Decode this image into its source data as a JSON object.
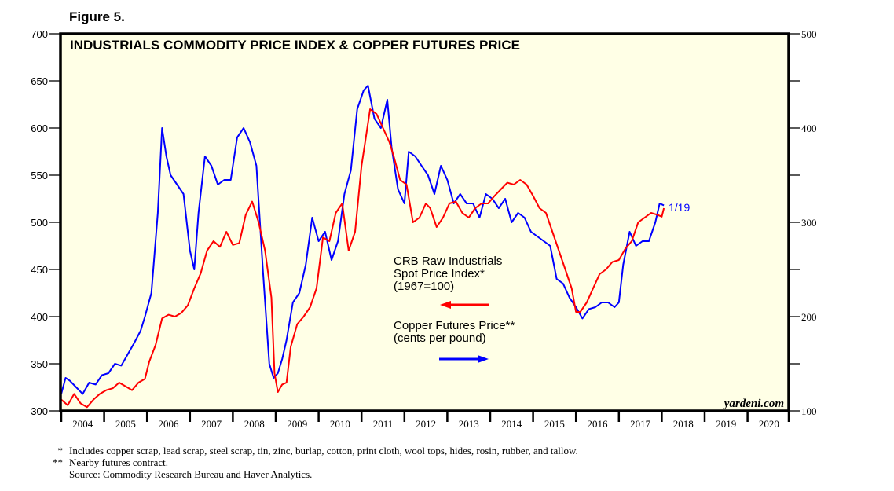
{
  "figure_label": "Figure 5.",
  "footnotes": [
    {
      "mark": "*",
      "text": "Includes copper scrap, lead scrap, steel scrap, tin, zinc, burlap, cotton, print cloth, wool tops, hides, rosin, rubber, and tallow."
    },
    {
      "mark": "**",
      "text": "Nearby futures contract."
    },
    {
      "mark": "",
      "text": "Source: Commodity Research Bureau and Haver Analytics."
    }
  ],
  "colors": {
    "crb": "#ff0000",
    "copper": "#0000ff",
    "plot_bg": "#ffffe6",
    "frame": "#000000"
  },
  "chart_data": {
    "type": "line",
    "title": "INDUSTRIALS COMMODITY PRICE INDEX & COPPER FUTURES PRICE",
    "watermark": "yardeni.com",
    "end_label": "1/19",
    "x_range": [
      2004,
      2021
    ],
    "x_ticks": [
      "2004",
      "2005",
      "2006",
      "2007",
      "2008",
      "2009",
      "2010",
      "2011",
      "2012",
      "2013",
      "2014",
      "2015",
      "2016",
      "2017",
      "2018",
      "2019",
      "2020"
    ],
    "y_left": {
      "range": [
        300,
        700
      ],
      "ticks": [
        300,
        350,
        400,
        450,
        500,
        550,
        600,
        650,
        700
      ]
    },
    "y_right": {
      "range": [
        100,
        500
      ],
      "ticks": [
        100,
        200,
        300,
        400,
        500
      ],
      "minor_step": 50
    },
    "grid": false,
    "legend": [
      {
        "name": "CRB Raw Industrials Spot Price Index* (1967=100)",
        "lines": [
          "CRB Raw Industrials",
          "Spot Price Index*",
          "(1967=100)"
        ],
        "axis": "left",
        "arrow": "left",
        "color": "#ff0000"
      },
      {
        "name": "Copper Futures Price** (cents per pound)",
        "lines": [
          "Copper Futures Price**",
          "(cents per pound)"
        ],
        "axis": "right",
        "arrow": "right",
        "color": "#0000ff"
      }
    ],
    "series": [
      {
        "name": "CRB Raw Industrials Spot Price Index",
        "axis": "left",
        "x": [
          2004.0,
          2004.15,
          2004.3,
          2004.45,
          2004.6,
          2004.75,
          2004.9,
          2005.05,
          2005.2,
          2005.35,
          2005.5,
          2005.65,
          2005.8,
          2005.95,
          2006.05,
          2006.2,
          2006.35,
          2006.5,
          2006.65,
          2006.8,
          2006.95,
          2007.1,
          2007.25,
          2007.4,
          2007.55,
          2007.7,
          2007.85,
          2008.0,
          2008.15,
          2008.3,
          2008.45,
          2008.6,
          2008.75,
          2008.9,
          2008.97,
          2009.05,
          2009.15,
          2009.25,
          2009.35,
          2009.5,
          2009.65,
          2009.8,
          2009.95,
          2010.1,
          2010.25,
          2010.4,
          2010.55,
          2010.7,
          2010.85,
          2011.0,
          2011.1,
          2011.2,
          2011.35,
          2011.5,
          2011.65,
          2011.75,
          2011.9,
          2012.05,
          2012.2,
          2012.35,
          2012.5,
          2012.6,
          2012.75,
          2012.9,
          2013.05,
          2013.2,
          2013.35,
          2013.5,
          2013.65,
          2013.8,
          2013.95,
          2014.1,
          2014.25,
          2014.4,
          2014.55,
          2014.7,
          2014.85,
          2015.0,
          2015.15,
          2015.3,
          2015.45,
          2015.6,
          2015.75,
          2015.9,
          2016.0,
          2016.1,
          2016.25,
          2016.4,
          2016.55,
          2016.7,
          2016.85,
          2017.0,
          2017.15,
          2017.3,
          2017.45,
          2017.6,
          2017.75,
          2017.9,
          2018.0,
          2018.05
        ],
        "values": [
          312,
          306,
          318,
          308,
          304,
          312,
          318,
          322,
          324,
          330,
          326,
          322,
          330,
          334,
          352,
          370,
          398,
          402,
          400,
          404,
          412,
          430,
          446,
          470,
          480,
          474,
          490,
          476,
          478,
          508,
          522,
          500,
          470,
          420,
          340,
          320,
          328,
          330,
          368,
          392,
          400,
          410,
          430,
          484,
          480,
          510,
          520,
          470,
          490,
          560,
          590,
          620,
          615,
          600,
          585,
          570,
          545,
          540,
          500,
          505,
          520,
          515,
          495,
          505,
          520,
          522,
          510,
          505,
          515,
          520,
          520,
          528,
          535,
          542,
          540,
          545,
          540,
          528,
          515,
          510,
          490,
          470,
          450,
          430,
          405,
          405,
          415,
          430,
          445,
          450,
          458,
          460,
          472,
          480,
          500,
          505,
          510,
          508,
          506,
          515
        ]
      },
      {
        "name": "Copper Futures Price",
        "axis": "right",
        "x": [
          2004.0,
          2004.1,
          2004.2,
          2004.35,
          2004.5,
          2004.65,
          2004.8,
          2004.95,
          2005.1,
          2005.25,
          2005.4,
          2005.55,
          2005.7,
          2005.85,
          2005.95,
          2006.1,
          2006.25,
          2006.35,
          2006.45,
          2006.55,
          2006.7,
          2006.85,
          2007.0,
          2007.1,
          2007.2,
          2007.35,
          2007.5,
          2007.65,
          2007.8,
          2007.95,
          2008.1,
          2008.25,
          2008.4,
          2008.55,
          2008.7,
          2008.85,
          2008.95,
          2009.05,
          2009.15,
          2009.25,
          2009.4,
          2009.55,
          2009.7,
          2009.85,
          2010.0,
          2010.15,
          2010.3,
          2010.45,
          2010.6,
          2010.75,
          2010.9,
          2011.05,
          2011.15,
          2011.3,
          2011.45,
          2011.6,
          2011.7,
          2011.85,
          2012.0,
          2012.1,
          2012.25,
          2012.4,
          2012.55,
          2012.7,
          2012.85,
          2013.0,
          2013.15,
          2013.3,
          2013.45,
          2013.6,
          2013.75,
          2013.9,
          2014.05,
          2014.2,
          2014.35,
          2014.5,
          2014.65,
          2014.8,
          2014.95,
          2015.1,
          2015.25,
          2015.4,
          2015.55,
          2015.7,
          2015.85,
          2016.0,
          2016.15,
          2016.3,
          2016.45,
          2016.6,
          2016.75,
          2016.9,
          2017.0,
          2017.1,
          2017.25,
          2017.4,
          2017.55,
          2017.7,
          2017.85,
          2017.95,
          2018.05
        ],
        "values": [
          118,
          135,
          132,
          125,
          118,
          130,
          128,
          138,
          140,
          150,
          148,
          160,
          172,
          185,
          200,
          225,
          310,
          400,
          370,
          350,
          340,
          330,
          270,
          250,
          310,
          370,
          360,
          340,
          345,
          345,
          390,
          400,
          385,
          360,
          250,
          150,
          135,
          140,
          155,
          175,
          215,
          225,
          255,
          305,
          280,
          290,
          260,
          280,
          330,
          355,
          420,
          440,
          445,
          410,
          400,
          430,
          380,
          335,
          320,
          375,
          370,
          360,
          350,
          330,
          360,
          345,
          320,
          330,
          320,
          320,
          305,
          330,
          325,
          315,
          325,
          300,
          310,
          305,
          290,
          285,
          280,
          275,
          240,
          235,
          220,
          210,
          198,
          208,
          210,
          215,
          215,
          210,
          215,
          255,
          290,
          275,
          280,
          280,
          300,
          320,
          318
        ]
      }
    ]
  }
}
